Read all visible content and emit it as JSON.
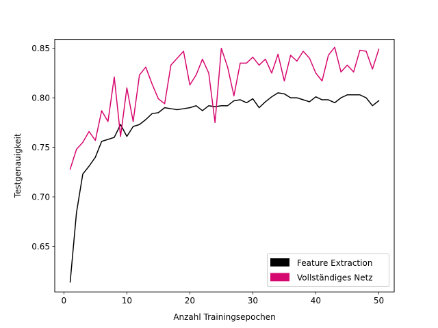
{
  "chart_data": {
    "type": "line",
    "title": "",
    "xlabel": "Anzahl Trainingsepochen",
    "ylabel": "Testgenauigkeit",
    "xlim": [
      -1.45,
      52.45
    ],
    "ylim": [
      0.604,
      0.859
    ],
    "xticks": [
      0,
      10,
      20,
      30,
      40,
      50
    ],
    "xtick_labels": [
      "0",
      "10",
      "20",
      "30",
      "40",
      "50"
    ],
    "yticks": [
      0.65,
      0.7,
      0.75,
      0.8,
      0.85
    ],
    "ytick_labels": [
      "0.65",
      "0.70",
      "0.75",
      "0.80",
      "0.85"
    ],
    "grid": false,
    "legend_position": "lower-right",
    "x": [
      1,
      2,
      3,
      4,
      5,
      6,
      7,
      8,
      9,
      10,
      11,
      12,
      13,
      14,
      15,
      16,
      17,
      18,
      19,
      20,
      21,
      22,
      23,
      24,
      25,
      26,
      27,
      28,
      29,
      30,
      31,
      32,
      33,
      34,
      35,
      36,
      37,
      38,
      39,
      40,
      41,
      42,
      43,
      44,
      45,
      46,
      47,
      48,
      49,
      50
    ],
    "series": [
      {
        "name": "Feature Extraction",
        "color": "#000000",
        "values": [
          0.614,
          0.684,
          0.723,
          0.731,
          0.74,
          0.756,
          0.758,
          0.76,
          0.773,
          0.761,
          0.771,
          0.773,
          0.778,
          0.784,
          0.785,
          0.79,
          0.789,
          0.788,
          0.789,
          0.79,
          0.792,
          0.787,
          0.792,
          0.791,
          0.792,
          0.792,
          0.797,
          0.798,
          0.795,
          0.799,
          0.79,
          0.796,
          0.801,
          0.805,
          0.804,
          0.8,
          0.8,
          0.798,
          0.796,
          0.801,
          0.798,
          0.798,
          0.795,
          0.8,
          0.803,
          0.803,
          0.803,
          0.8,
          0.792,
          0.797
        ]
      },
      {
        "name": "Vollständiges Netz",
        "color": "#d6076e",
        "values": [
          0.728,
          0.748,
          0.755,
          0.766,
          0.757,
          0.787,
          0.776,
          0.821,
          0.761,
          0.81,
          0.776,
          0.823,
          0.831,
          0.814,
          0.799,
          0.794,
          0.833,
          0.84,
          0.847,
          0.813,
          0.823,
          0.839,
          0.825,
          0.775,
          0.85,
          0.831,
          0.802,
          0.835,
          0.835,
          0.841,
          0.833,
          0.839,
          0.825,
          0.844,
          0.817,
          0.843,
          0.837,
          0.847,
          0.84,
          0.825,
          0.817,
          0.843,
          0.851,
          0.826,
          0.833,
          0.826,
          0.848,
          0.847,
          0.829,
          0.849
        ]
      }
    ]
  }
}
